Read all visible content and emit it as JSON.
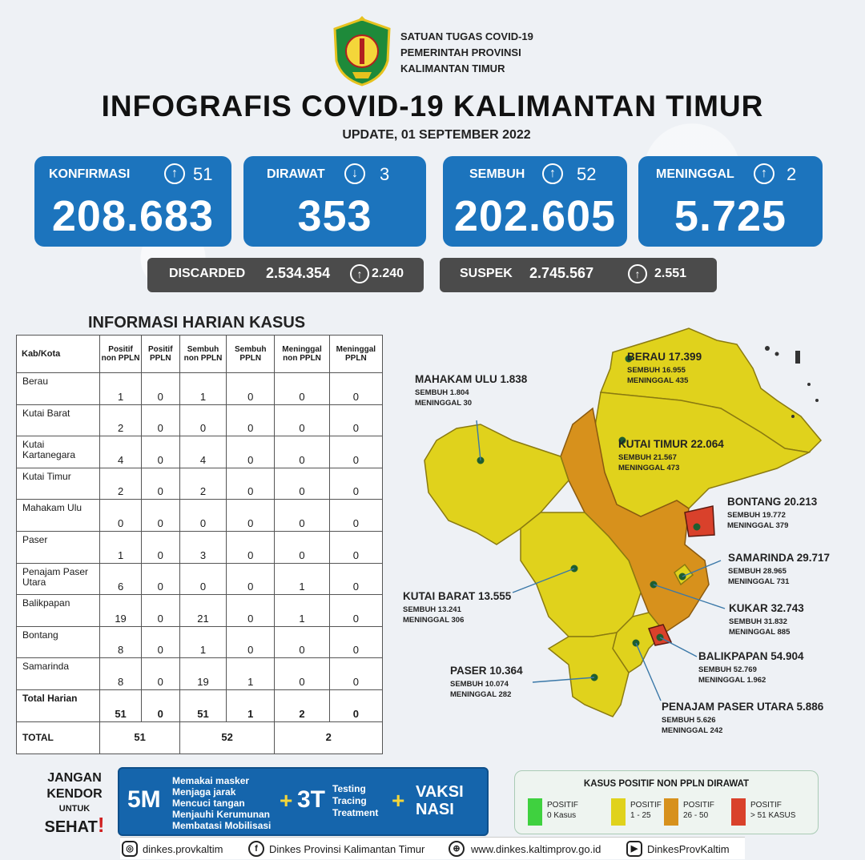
{
  "header": {
    "org_lines": [
      "SATUAN TUGAS COVID-19",
      "PEMERINTAH PROVINSI",
      "KALIMANTAN TIMUR"
    ],
    "title": "INFOGRAFIS COVID-19 KALIMANTAN TIMUR",
    "update": "UPDATE, 01 SEPTEMBER 2022"
  },
  "stats": [
    {
      "label": "KONFIRMASI",
      "direction": "up",
      "change": "51",
      "value": "208.683"
    },
    {
      "label": "DIRAWAT",
      "direction": "down",
      "change": "3",
      "value": "353"
    },
    {
      "label": "SEMBUH",
      "direction": "up",
      "change": "52",
      "value": "202.605"
    },
    {
      "label": "MENINGGAL",
      "direction": "up",
      "change": "2",
      "value": "5.725"
    }
  ],
  "secondary": [
    {
      "label": "DISCARDED",
      "value": "2.534.354",
      "change": "2.240"
    },
    {
      "label": "SUSPEK",
      "value": "2.745.567",
      "change": "2.551"
    }
  ],
  "arrows": {
    "up": "↑",
    "down": "↓"
  },
  "table": {
    "title": "INFORMASI HARIAN KASUS",
    "headers": [
      "Kab/Kota",
      "Positif non PPLN",
      "Positif PPLN",
      "Sembuh non PPLN",
      "Sembuh PPLN",
      "Meninggal non PPLN",
      "Meninggal PPLN"
    ],
    "rows": [
      {
        "name": "Berau",
        "values": [
          "1",
          "0",
          "1",
          "0",
          "0",
          "0"
        ]
      },
      {
        "name": "Kutai Barat",
        "values": [
          "2",
          "0",
          "0",
          "0",
          "0",
          "0"
        ]
      },
      {
        "name": "Kutai Kartanegara",
        "values": [
          "4",
          "0",
          "4",
          "0",
          "0",
          "0"
        ]
      },
      {
        "name": "Kutai Timur",
        "values": [
          "2",
          "0",
          "2",
          "0",
          "0",
          "0"
        ]
      },
      {
        "name": "Mahakam Ulu",
        "values": [
          "0",
          "0",
          "0",
          "0",
          "0",
          "0"
        ]
      },
      {
        "name": "Paser",
        "values": [
          "1",
          "0",
          "3",
          "0",
          "0",
          "0"
        ]
      },
      {
        "name": "Penajam Paser Utara",
        "values": [
          "6",
          "0",
          "0",
          "0",
          "1",
          "0"
        ]
      },
      {
        "name": "Balikpapan",
        "values": [
          "19",
          "0",
          "21",
          "0",
          "1",
          "0"
        ]
      },
      {
        "name": "Bontang",
        "values": [
          "8",
          "0",
          "1",
          "0",
          "0",
          "0"
        ]
      },
      {
        "name": "Samarinda",
        "values": [
          "8",
          "0",
          "19",
          "1",
          "0",
          "0"
        ]
      }
    ],
    "total_harian": {
      "name": "Total Harian",
      "values": [
        "51",
        "0",
        "51",
        "1",
        "2",
        "0"
      ]
    },
    "total": {
      "name": "TOTAL",
      "values": [
        "51",
        "52",
        "2"
      ]
    }
  },
  "map": [
    {
      "name": "BERAU",
      "total": "17.399",
      "sembuh": "SEMBUH 16.955",
      "meninggal": "MENINGGAL 435",
      "color": "#e0d21c"
    },
    {
      "name": "MAHAKAM ULU",
      "total": "1.838",
      "sembuh": "SEMBUH 1.804",
      "meninggal": "MENINGGAL 30",
      "color": "#e0d21c"
    },
    {
      "name": "KUTAI TIMUR",
      "total": "22.064",
      "sembuh": "SEMBUH 21.567",
      "meninggal": "MENINGGAL 473",
      "color": "#e0d21c"
    },
    {
      "name": "BONTANG",
      "total": "20.213",
      "sembuh": "SEMBUH 19.772",
      "meninggal": "MENINGGAL 379",
      "color": "#d9412b"
    },
    {
      "name": "SAMARINDA",
      "total": "29.717",
      "sembuh": "SEMBUH 28.965",
      "meninggal": "MENINGGAL 731",
      "color": "#e0d21c"
    },
    {
      "name": "KUKAR",
      "total": "32.743",
      "sembuh": "SEMBUH 31.832",
      "meninggal": "MENINGGAL 885",
      "color": "#d7911c"
    },
    {
      "name": "KUTAI BARAT",
      "total": "13.555",
      "sembuh": "SEMBUH 13.241",
      "meninggal": "MENINGGAL 306",
      "color": "#e0d21c"
    },
    {
      "name": "BALIKPAPAN",
      "total": "54.904",
      "sembuh": "SEMBUH 52.769",
      "meninggal": "MENINGGAL 1.962",
      "color": "#d9412b"
    },
    {
      "name": "PASER",
      "total": "10.364",
      "sembuh": "SEMBUH 10.074",
      "meninggal": "MENINGGAL 282",
      "color": "#e0d21c"
    },
    {
      "name": "PENAJAM PASER UTARA",
      "total": "5.886",
      "sembuh": "SEMBUH 5.626",
      "meninggal": "MENINGGAL 242",
      "color": "#e0d21c"
    }
  ],
  "campaign": {
    "slogan": [
      "JANGAN",
      "KENDOR",
      "UNTUK",
      "SEHAT",
      "!"
    ],
    "fiveM": "5M",
    "fiveM_items": [
      "Memakai masker",
      "Menjaga jarak",
      "Mencuci tangan",
      "Menjauhi Kerumunan",
      "Membatasi Mobilisasi"
    ],
    "plus": "+",
    "threeT": "3T",
    "threeT_items": [
      "Testing",
      "Tracing",
      "Treatment"
    ],
    "vaksinasi": [
      "VAKSI",
      "NASI"
    ]
  },
  "legend": {
    "title": "KASUS POSITIF NON PPLN DIRAWAT",
    "items": [
      {
        "line1": "POSITIF",
        "line2": "0 Kasus",
        "color": "#3fd13f"
      },
      {
        "line1": "POSITIF",
        "line2": "1 - 25",
        "color": "#e0d21c"
      },
      {
        "line1": "POSITIF",
        "line2": "26 - 50",
        "color": "#d7911c"
      },
      {
        "line1": "POSITIF",
        "line2": "> 51 KASUS",
        "color": "#d9412b"
      }
    ]
  },
  "social": {
    "instagram": "dinkes.provkaltim",
    "facebook": "Dinkes Provinsi Kalimantan Timur",
    "web": "www.dinkes.kaltimprov.go.id",
    "youtube": "DinkesProvKaltim"
  }
}
